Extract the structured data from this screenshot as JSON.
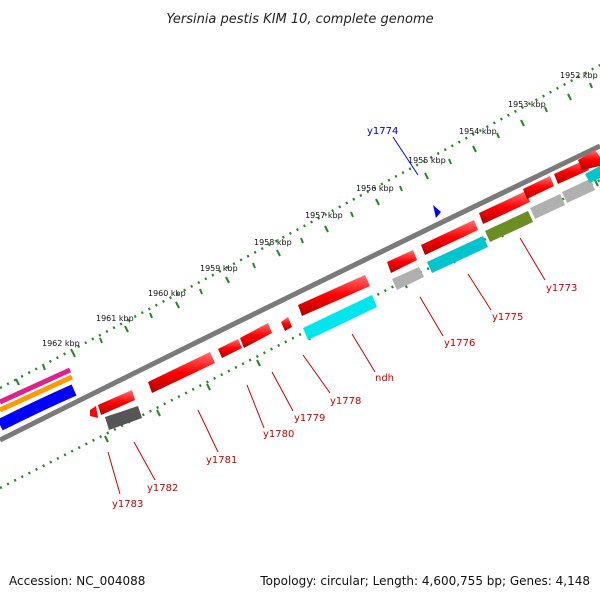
{
  "title": "Yersinia pestis KIM 10, complete genome",
  "accession": "Accession: NC_004088",
  "summary": "Topology: circular; Length: 4,600,755 bp; Genes: 4,148",
  "scale_labels": [
    "1952 kbp",
    "1953 kbp",
    "1954 kbp",
    "1955 kbp",
    "1956 kbp",
    "1957 kbp",
    "1958 kbp",
    "1959 kbp",
    "1960 kbp",
    "1961 kbp",
    "1962 kbp"
  ],
  "gene_labels": [
    "y1774",
    "y1773",
    "y1775",
    "y1776",
    "ndh",
    "y1778",
    "y1779",
    "y1780",
    "y1781",
    "y1782",
    "y1783"
  ],
  "colors": {
    "gene": "#ff0000",
    "cyan": "#00e5ee",
    "gray": "#b0b0b0",
    "olive": "#6b8e23",
    "ticks": "#228b22",
    "backbone": "#808080",
    "label_red": "#cc0000",
    "label_blue": "#0000cc"
  }
}
